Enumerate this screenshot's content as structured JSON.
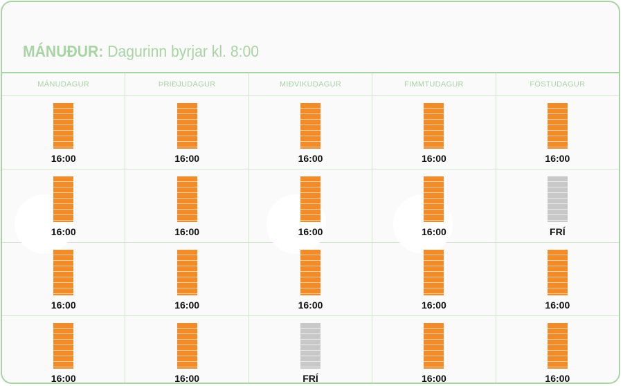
{
  "title": {
    "day": "MÁNUÐUR:",
    "text": "Dagurinn byrjar kl. 8:00"
  },
  "columns": [
    "MÁNUDAGUR",
    "ÞRIÐJUDAGUR",
    "MIÐVIKUDAGUR",
    "FIMMTUDAGUR",
    "FÖSTUDAGUR"
  ],
  "weeks": [
    [
      "16:00",
      "16:00",
      "16:00",
      "16:00",
      "16:00"
    ],
    [
      "16:00",
      "16:00",
      "16:00",
      "16:00",
      "FRÍ"
    ],
    [
      "16:00",
      "16:00",
      "16:00",
      "16:00",
      "16:00"
    ],
    [
      "16:00",
      "16:00",
      "FRÍ",
      "16:00",
      "16:00"
    ]
  ],
  "colors": {
    "accent": "#a8d4a4",
    "bar_active": "#f28c28",
    "bar_off": "#c8c8c8"
  }
}
